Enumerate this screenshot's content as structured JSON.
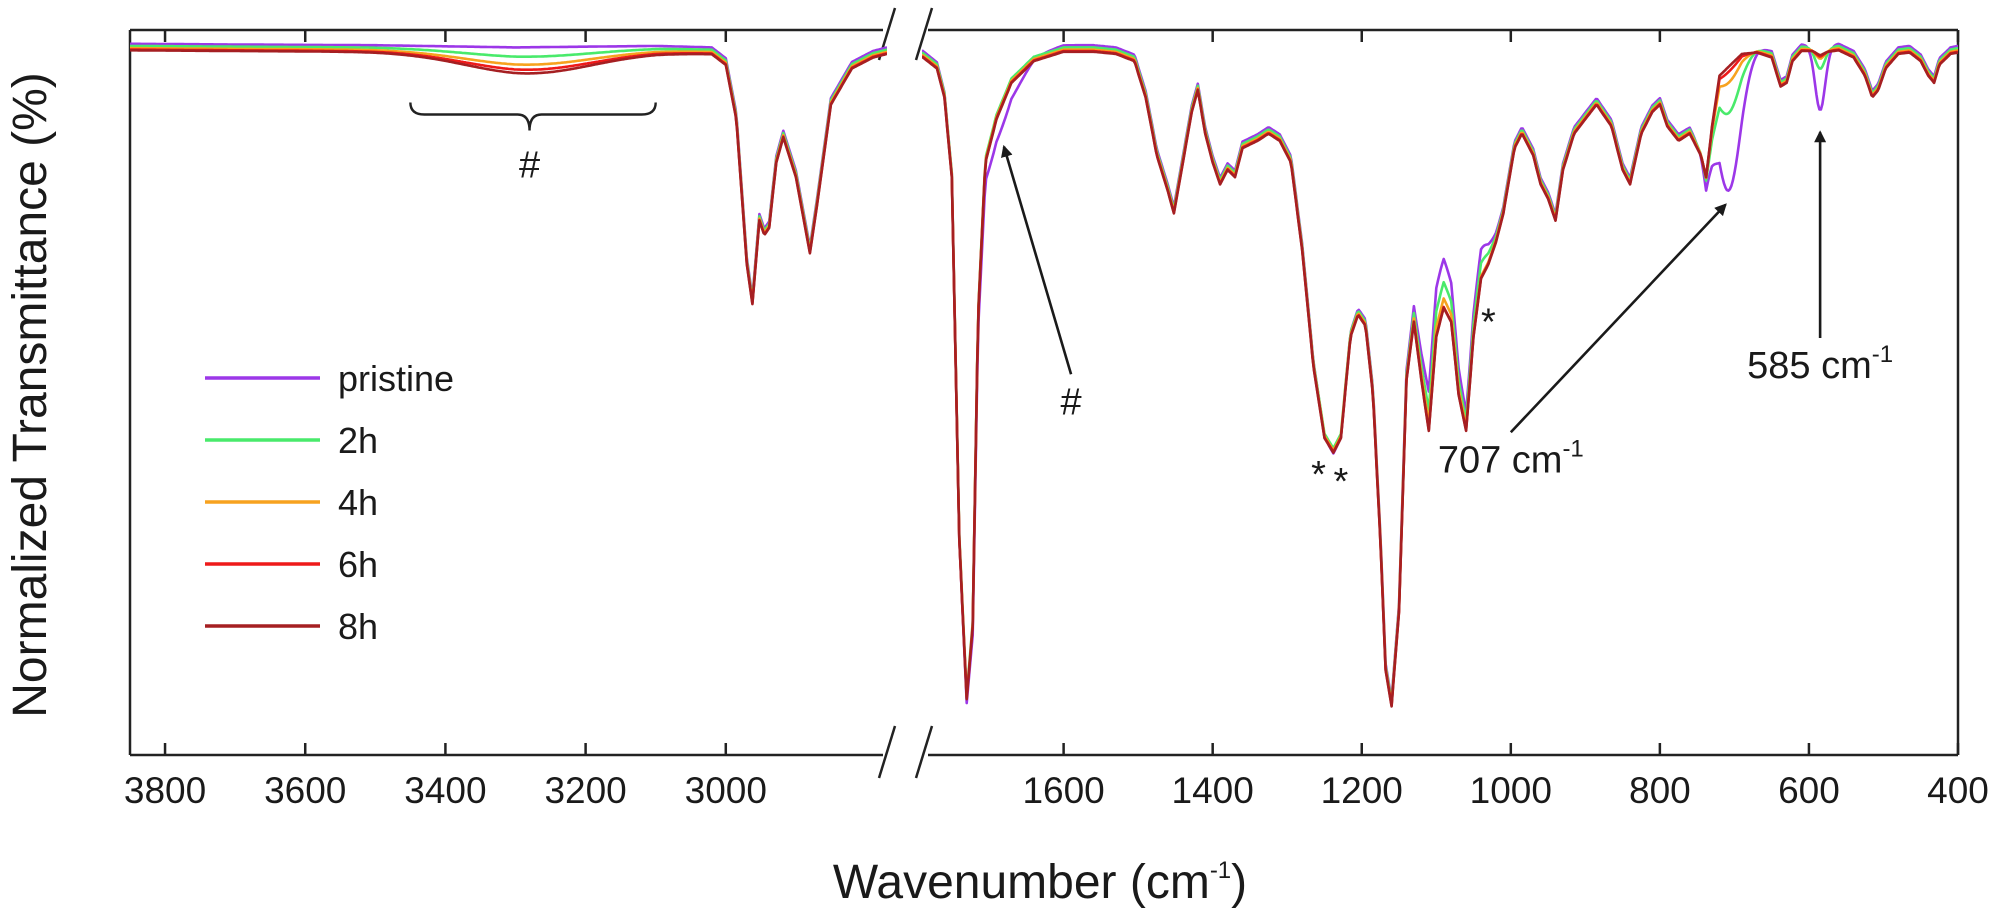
{
  "chart_data": {
    "type": "line",
    "xlabel": "Wavenumber (cm",
    "xlabel_sup": "-1",
    "xlabel_close": ")",
    "ylabel": "Normalized Transmittance (%)",
    "x_axis_reversed": true,
    "axis_break_between": [
      2770,
      1790
    ],
    "x_segments": [
      {
        "xlim": [
          3850,
          2770
        ],
        "ticks": [
          3800,
          3600,
          3400,
          3200,
          3000
        ]
      },
      {
        "xlim": [
          1790,
          400
        ],
        "ticks": [
          1600,
          1400,
          1200,
          1000,
          800,
          600,
          400
        ]
      }
    ],
    "tick_labels": [
      "3800",
      "3600",
      "3400",
      "3200",
      "3000",
      "1600",
      "1400",
      "1200",
      "1000",
      "800",
      "600",
      "400"
    ],
    "ylim": [
      0,
      100
    ],
    "legend_placement": "left",
    "series": [
      {
        "name": "pristine",
        "color": "#9c37e8"
      },
      {
        "name": "2h",
        "color": "#49ea6b"
      },
      {
        "name": "4h",
        "color": "#f7a21f"
      },
      {
        "name": "6h",
        "color": "#ee1a1a"
      },
      {
        "name": "8h",
        "color": "#a51f22"
      }
    ],
    "base_spectrum": [
      [
        3850,
        97.5
      ],
      [
        3700,
        97.4
      ],
      [
        3500,
        97.3
      ],
      [
        3300,
        97.0
      ],
      [
        3100,
        97.2
      ],
      [
        3020,
        97.0
      ],
      [
        3000,
        95.5
      ],
      [
        2985,
        88
      ],
      [
        2970,
        68
      ],
      [
        2962,
        62.5
      ],
      [
        2952,
        74
      ],
      [
        2945,
        72
      ],
      [
        2938,
        73
      ],
      [
        2928,
        82
      ],
      [
        2918,
        85.5
      ],
      [
        2900,
        80
      ],
      [
        2880,
        69.5
      ],
      [
        2870,
        76
      ],
      [
        2850,
        90
      ],
      [
        2820,
        95
      ],
      [
        2790,
        96.5
      ],
      [
        2770,
        97
      ],
      [
        1790,
        96.6
      ],
      [
        1770,
        95
      ],
      [
        1760,
        91
      ],
      [
        1750,
        80
      ],
      [
        1740,
        30
      ],
      [
        1730,
        8
      ],
      [
        1722,
        18
      ],
      [
        1715,
        60
      ],
      [
        1705,
        82
      ],
      [
        1690,
        88
      ],
      [
        1670,
        93
      ],
      [
        1640,
        96
      ],
      [
        1600,
        97.3
      ],
      [
        1560,
        97.3
      ],
      [
        1530,
        97
      ],
      [
        1505,
        96
      ],
      [
        1490,
        91
      ],
      [
        1475,
        83
      ],
      [
        1460,
        78
      ],
      [
        1452,
        75
      ],
      [
        1440,
        82
      ],
      [
        1428,
        89
      ],
      [
        1420,
        92
      ],
      [
        1410,
        86
      ],
      [
        1400,
        82
      ],
      [
        1390,
        79
      ],
      [
        1380,
        81
      ],
      [
        1370,
        80
      ],
      [
        1360,
        84
      ],
      [
        1340,
        85
      ],
      [
        1325,
        86
      ],
      [
        1310,
        85
      ],
      [
        1295,
        82
      ],
      [
        1280,
        70
      ],
      [
        1265,
        54
      ],
      [
        1250,
        44
      ],
      [
        1238,
        42
      ],
      [
        1228,
        44
      ],
      [
        1215,
        58
      ],
      [
        1205,
        61
      ],
      [
        1195,
        59.5
      ],
      [
        1185,
        50
      ],
      [
        1175,
        30
      ],
      [
        1168,
        12
      ],
      [
        1160,
        7
      ],
      [
        1150,
        20
      ],
      [
        1140,
        52
      ],
      [
        1130,
        60
      ],
      [
        1120,
        52
      ],
      [
        1110,
        45
      ],
      [
        1100,
        58
      ],
      [
        1090,
        62
      ],
      [
        1080,
        60
      ],
      [
        1070,
        50
      ],
      [
        1060,
        45
      ],
      [
        1050,
        58
      ],
      [
        1040,
        66
      ],
      [
        1030,
        68
      ],
      [
        1020,
        71
      ],
      [
        1010,
        75
      ],
      [
        995,
        84
      ],
      [
        985,
        86
      ],
      [
        970,
        83
      ],
      [
        960,
        79
      ],
      [
        950,
        77
      ],
      [
        940,
        74
      ],
      [
        930,
        81
      ],
      [
        915,
        86
      ],
      [
        900,
        88
      ],
      [
        885,
        90
      ],
      [
        865,
        87
      ],
      [
        850,
        81
      ],
      [
        840,
        79
      ],
      [
        825,
        86
      ],
      [
        810,
        89
      ],
      [
        800,
        90
      ],
      [
        790,
        87
      ],
      [
        775,
        85
      ],
      [
        760,
        86
      ],
      [
        745,
        83
      ],
      [
        738,
        80
      ],
      [
        730,
        87
      ],
      [
        720,
        94
      ],
      [
        710,
        95
      ],
      [
        700,
        96
      ],
      [
        690,
        97
      ],
      [
        670,
        97.2
      ],
      [
        650,
        96.5
      ],
      [
        638,
        92.5
      ],
      [
        630,
        93
      ],
      [
        622,
        96
      ],
      [
        610,
        97.4
      ],
      [
        595,
        97.4
      ],
      [
        585,
        96.8
      ],
      [
        575,
        97.3
      ],
      [
        560,
        97.5
      ],
      [
        540,
        96.5
      ],
      [
        525,
        94
      ],
      [
        515,
        91
      ],
      [
        507,
        92
      ],
      [
        497,
        95
      ],
      [
        480,
        97
      ],
      [
        465,
        97.2
      ],
      [
        450,
        96
      ],
      [
        440,
        94
      ],
      [
        432,
        93
      ],
      [
        425,
        95.5
      ],
      [
        410,
        97
      ],
      [
        400,
        97.2
      ]
    ],
    "series_variants": [
      {
        "name": "pristine",
        "offset": 0.6,
        "features": [
          [
            3280,
            90,
            0.0
          ],
          [
            707,
            16,
            -18.0
          ],
          [
            585,
            7,
            -8.5
          ],
          [
            1238,
            14,
            -1.0
          ],
          [
            1095,
            20,
            6.0
          ],
          [
            1040,
            10,
            3.0
          ],
          [
            1690,
            28,
            -4.0
          ]
        ]
      },
      {
        "name": "2h",
        "offset": 0.3,
        "features": [
          [
            3280,
            90,
            -1.0
          ],
          [
            707,
            16,
            -7.0
          ],
          [
            585,
            7,
            -2.5
          ],
          [
            1095,
            20,
            3.0
          ],
          [
            1040,
            10,
            1.5
          ]
        ]
      },
      {
        "name": "4h",
        "offset": 0.0,
        "features": [
          [
            3280,
            90,
            -1.8
          ],
          [
            707,
            16,
            -2.5
          ],
          [
            585,
            7,
            -0.8
          ],
          [
            1095,
            20,
            1.0
          ]
        ]
      },
      {
        "name": "6h",
        "offset": -0.2,
        "features": [
          [
            3280,
            90,
            -2.3
          ],
          [
            707,
            16,
            -0.8
          ],
          [
            585,
            7,
            -0.3
          ]
        ]
      },
      {
        "name": "8h",
        "offset": -0.3,
        "features": [
          [
            3280,
            90,
            -2.7
          ]
        ]
      }
    ],
    "annotations": [
      {
        "text": "#",
        "target_x": 3280,
        "kind": "brace",
        "brace_from": 3450,
        "brace_to": 3100,
        "brace_y": 90
      },
      {
        "text": "#",
        "target_x": 1680,
        "target_y": 85,
        "label_x": 1590,
        "label_y": 47,
        "kind": "arrow"
      },
      {
        "text": "*",
        "at_x": 1258,
        "at_y": 37,
        "kind": "text"
      },
      {
        "text": "*",
        "at_x": 1228,
        "at_y": 36,
        "kind": "text"
      },
      {
        "text": "*",
        "at_x": 1030,
        "at_y": 58,
        "kind": "text"
      },
      {
        "text": "707 cm",
        "sup": "-1",
        "target_x": 712,
        "target_y": 77,
        "label_x": 1000,
        "label_y": 39,
        "kind": "arrow"
      },
      {
        "text": "585 cm",
        "sup": "-1",
        "target_x": 585,
        "target_y": 87,
        "label_x": 585,
        "label_y": 52,
        "kind": "arrow"
      }
    ]
  }
}
